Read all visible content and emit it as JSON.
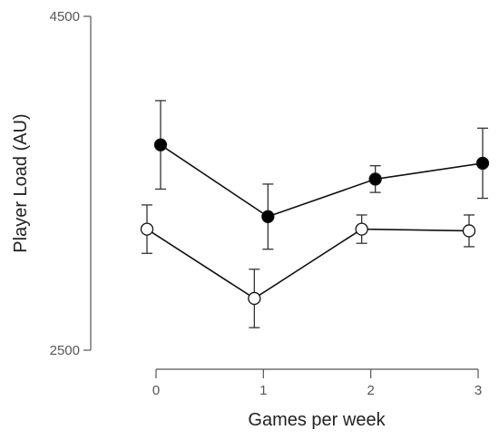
{
  "chart_data": {
    "type": "line",
    "xlabel": "Games per week",
    "ylabel": "Player Load (AU)",
    "x": [
      0,
      1,
      2,
      3
    ],
    "xlim": [
      0,
      3
    ],
    "ylim": [
      2500,
      4500
    ],
    "y_ticks": [
      2500,
      4500
    ],
    "x_ticks": [
      0,
      1,
      2,
      3
    ],
    "grid": false,
    "series": [
      {
        "marker": "filled-circle",
        "color": "#000000",
        "values": [
          3730,
          3300,
          3525,
          3620
        ],
        "error": [
          265,
          195,
          80,
          210
        ]
      },
      {
        "marker": "open-circle",
        "color": "#ffffff",
        "values": [
          3225,
          2810,
          3225,
          3215
        ],
        "error": [
          145,
          175,
          85,
          95
        ]
      }
    ]
  }
}
